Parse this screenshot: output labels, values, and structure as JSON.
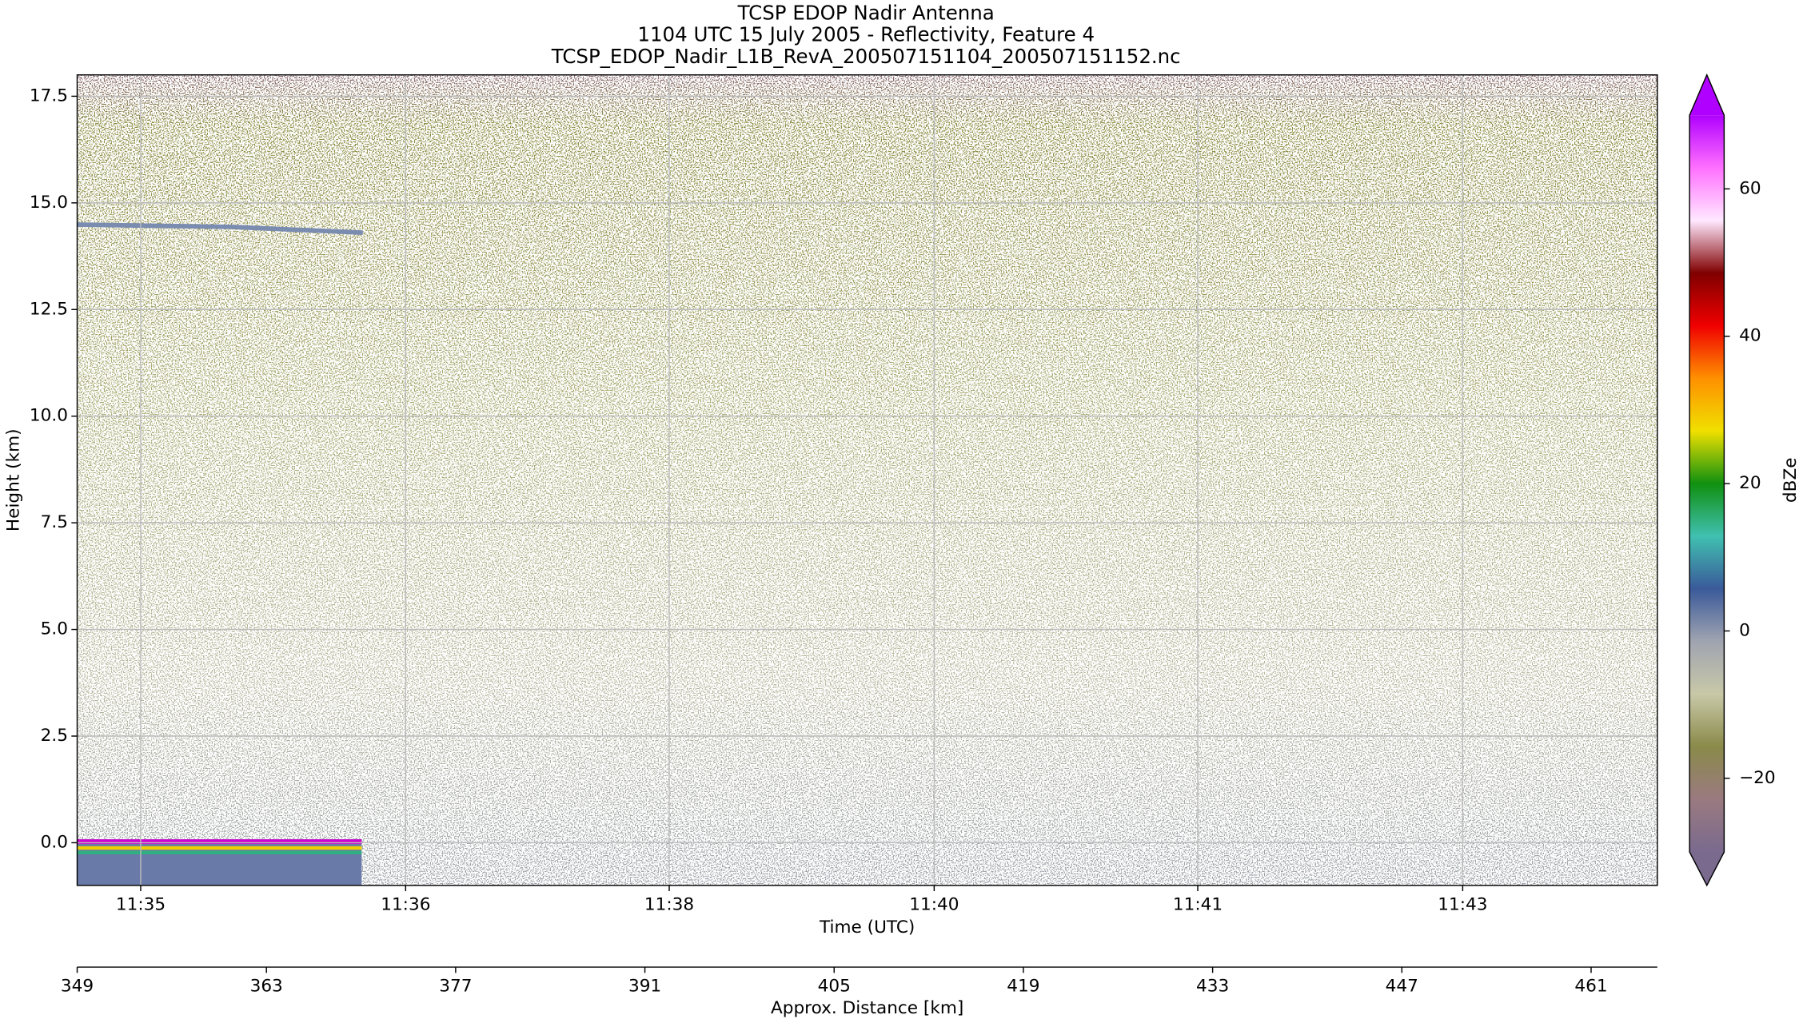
{
  "chart_data": {
    "type": "heatmap",
    "title": [
      "TCSP EDOP Nadir Antenna",
      "1104 UTC 15 July 2005 - Reflectivity, Feature 4",
      "TCSP_EDOP_Nadir_L1B_RevA_200507151104_200507151152.nc"
    ],
    "xlabel": "Time (UTC)",
    "ylabel": "Height (km)",
    "x2label": "Approx. Distance [km]",
    "xlim": [
      349,
      465.9
    ],
    "xticks": [
      {
        "value": 353.7,
        "label": "11:35"
      },
      {
        "value": 373.3,
        "label": "11:36"
      },
      {
        "value": 392.8,
        "label": "11:38"
      },
      {
        "value": 412.4,
        "label": "11:40"
      },
      {
        "value": 431.9,
        "label": "11:41"
      },
      {
        "value": 451.5,
        "label": "11:43"
      }
    ],
    "x2ticks": [
      349,
      363,
      377,
      391,
      405,
      419,
      433,
      447,
      461
    ],
    "ylim": [
      -1,
      18
    ],
    "yticks": [
      {
        "value": 0,
        "label": "0.0"
      },
      {
        "value": 2.5,
        "label": "2.5"
      },
      {
        "value": 5,
        "label": "5.0"
      },
      {
        "value": 7.5,
        "label": "7.5"
      },
      {
        "value": 10,
        "label": "10.0"
      },
      {
        "value": 12.5,
        "label": "12.5"
      },
      {
        "value": 15,
        "label": "15.0"
      },
      {
        "value": 17.5,
        "label": "17.5"
      }
    ],
    "grid": true,
    "colorbar": {
      "label": "dBZe",
      "lim": [
        -30,
        70
      ],
      "ticks": [
        {
          "value": -20,
          "label": "−20"
        },
        0,
        20,
        40,
        60
      ],
      "colors": [
        "#7a6a8e",
        "#9a7a80",
        "#8a8a4a",
        "#c8c8a8",
        "#a0a4b0",
        "#3a5a9a",
        "#40c0b0",
        "#109010",
        "#f0e000",
        "#ff9000",
        "#f00000",
        "#800000",
        "#ffe8ff",
        "#ff70ff",
        "#b000ff"
      ]
    }
  }
}
